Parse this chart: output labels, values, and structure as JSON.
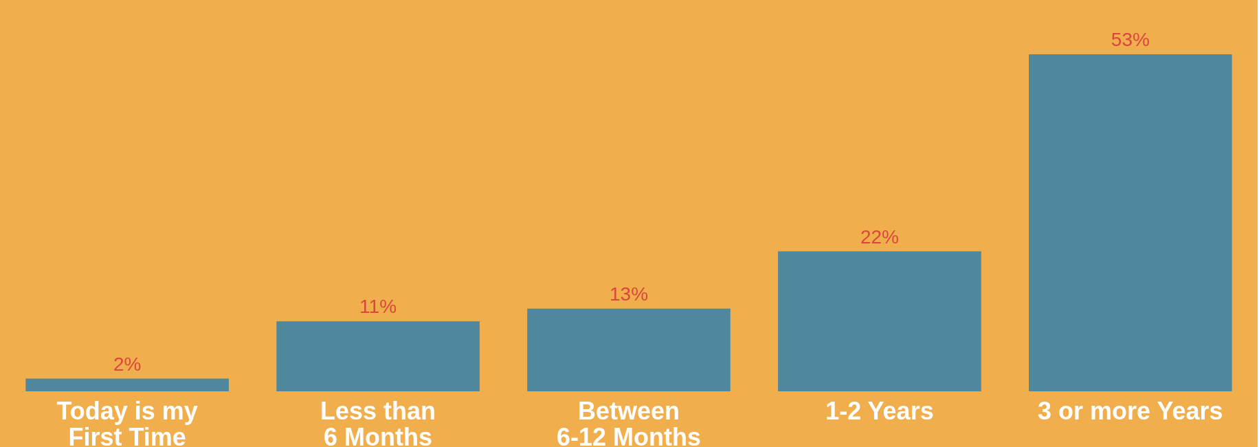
{
  "chart_data": {
    "type": "bar",
    "categories": [
      "Today is my\nFirst Time",
      "Less than\n6 Months",
      "Between\n6-12 Months",
      "1-2 Years",
      "3 or more Years"
    ],
    "values": [
      2,
      11,
      13,
      22,
      53
    ],
    "value_labels": [
      "2%",
      "11%",
      "13%",
      "22%",
      "53%"
    ],
    "color": "#4f879d",
    "grid": false
  }
}
